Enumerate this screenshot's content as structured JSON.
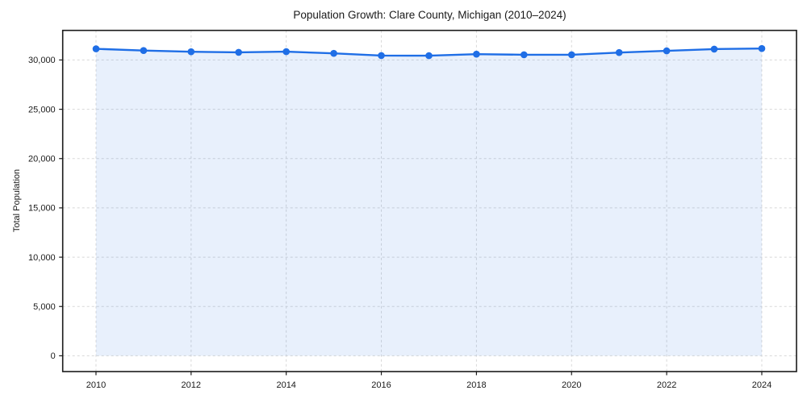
{
  "page": {
    "title": "Population Growth: Clare County, Michigan (2010–2024)"
  },
  "chart_data": {
    "type": "area",
    "title": "Population Growth: Clare County, Michigan (2010–2024)",
    "xlabel": "",
    "ylabel": "Total Population",
    "x": [
      2010,
      2011,
      2012,
      2013,
      2014,
      2015,
      2016,
      2017,
      2018,
      2019,
      2020,
      2021,
      2022,
      2023,
      2024
    ],
    "series": [
      {
        "name": "Total Population",
        "values": [
          31130,
          30960,
          30830,
          30780,
          30840,
          30670,
          30450,
          30430,
          30590,
          30530,
          30530,
          30750,
          30920,
          31100,
          31160
        ]
      }
    ],
    "xticks": {
      "values": [
        2010,
        2012,
        2014,
        2016,
        2018,
        2020,
        2022,
        2024
      ],
      "labels": [
        "2010",
        "2012",
        "2014",
        "2016",
        "2018",
        "2020",
        "2022",
        "2024"
      ]
    },
    "yticks": {
      "values": [
        0,
        5000,
        10000,
        15000,
        20000,
        25000,
        30000
      ],
      "labels": [
        "0",
        "5,000",
        "10,000",
        "15,000",
        "20,000",
        "25,000",
        "30,000"
      ]
    },
    "xlim": [
      2009.3,
      2024.73
    ],
    "ylim": [
      -1600,
      33000
    ],
    "grid": true,
    "grid_style": "dashed",
    "legend": "none",
    "marker": "circle",
    "colors": {
      "line": "#1f6ee6",
      "marker": "#1f6ee6",
      "fill": "rgba(31,110,230,0.10)",
      "grid": "#d8d8d8",
      "spine": "#1a1a1a",
      "text": "#1a1a1a",
      "background": "#ffffff"
    }
  }
}
